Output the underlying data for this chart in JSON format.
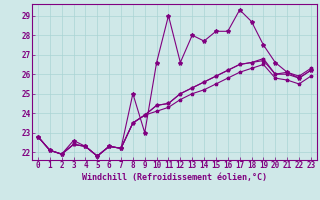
{
  "xlabel": "Windchill (Refroidissement éolien,°C)",
  "bg_color": "#cfe8e8",
  "line_color": "#800080",
  "grid_color": "#aad4d4",
  "border_color": "#800080",
  "x_ticks": [
    0,
    1,
    2,
    3,
    4,
    5,
    6,
    7,
    8,
    9,
    10,
    11,
    12,
    13,
    14,
    15,
    16,
    17,
    18,
    19,
    20,
    21,
    22,
    23
  ],
  "y_ticks": [
    22,
    23,
    24,
    25,
    26,
    27,
    28,
    29
  ],
  "ylim": [
    21.6,
    29.6
  ],
  "xlim": [
    -0.5,
    23.5
  ],
  "series1": [
    22.8,
    22.1,
    21.9,
    22.6,
    22.3,
    21.8,
    22.3,
    22.2,
    25.0,
    23.0,
    26.6,
    29.0,
    26.6,
    28.0,
    27.7,
    28.2,
    28.2,
    29.3,
    28.7,
    27.5,
    26.6,
    26.1,
    25.8,
    26.2
  ],
  "series2": [
    22.8,
    22.1,
    21.9,
    22.4,
    22.3,
    21.8,
    22.3,
    22.2,
    23.5,
    23.9,
    24.4,
    24.5,
    25.0,
    25.3,
    25.6,
    25.9,
    26.2,
    26.5,
    26.6,
    26.7,
    26.0,
    26.0,
    25.8,
    26.2
  ],
  "series3": [
    22.8,
    22.1,
    21.9,
    22.4,
    22.3,
    21.8,
    22.3,
    22.2,
    23.5,
    23.9,
    24.4,
    24.5,
    25.0,
    25.3,
    25.6,
    25.9,
    26.2,
    26.5,
    26.6,
    26.8,
    26.0,
    26.1,
    25.9,
    26.3
  ],
  "series4": [
    22.8,
    22.1,
    21.9,
    22.4,
    22.3,
    21.8,
    22.3,
    22.2,
    23.5,
    23.9,
    24.1,
    24.3,
    24.7,
    25.0,
    25.2,
    25.5,
    25.8,
    26.1,
    26.3,
    26.5,
    25.8,
    25.7,
    25.5,
    25.9
  ],
  "tick_fontsize": 5.5,
  "xlabel_fontsize": 6.0
}
